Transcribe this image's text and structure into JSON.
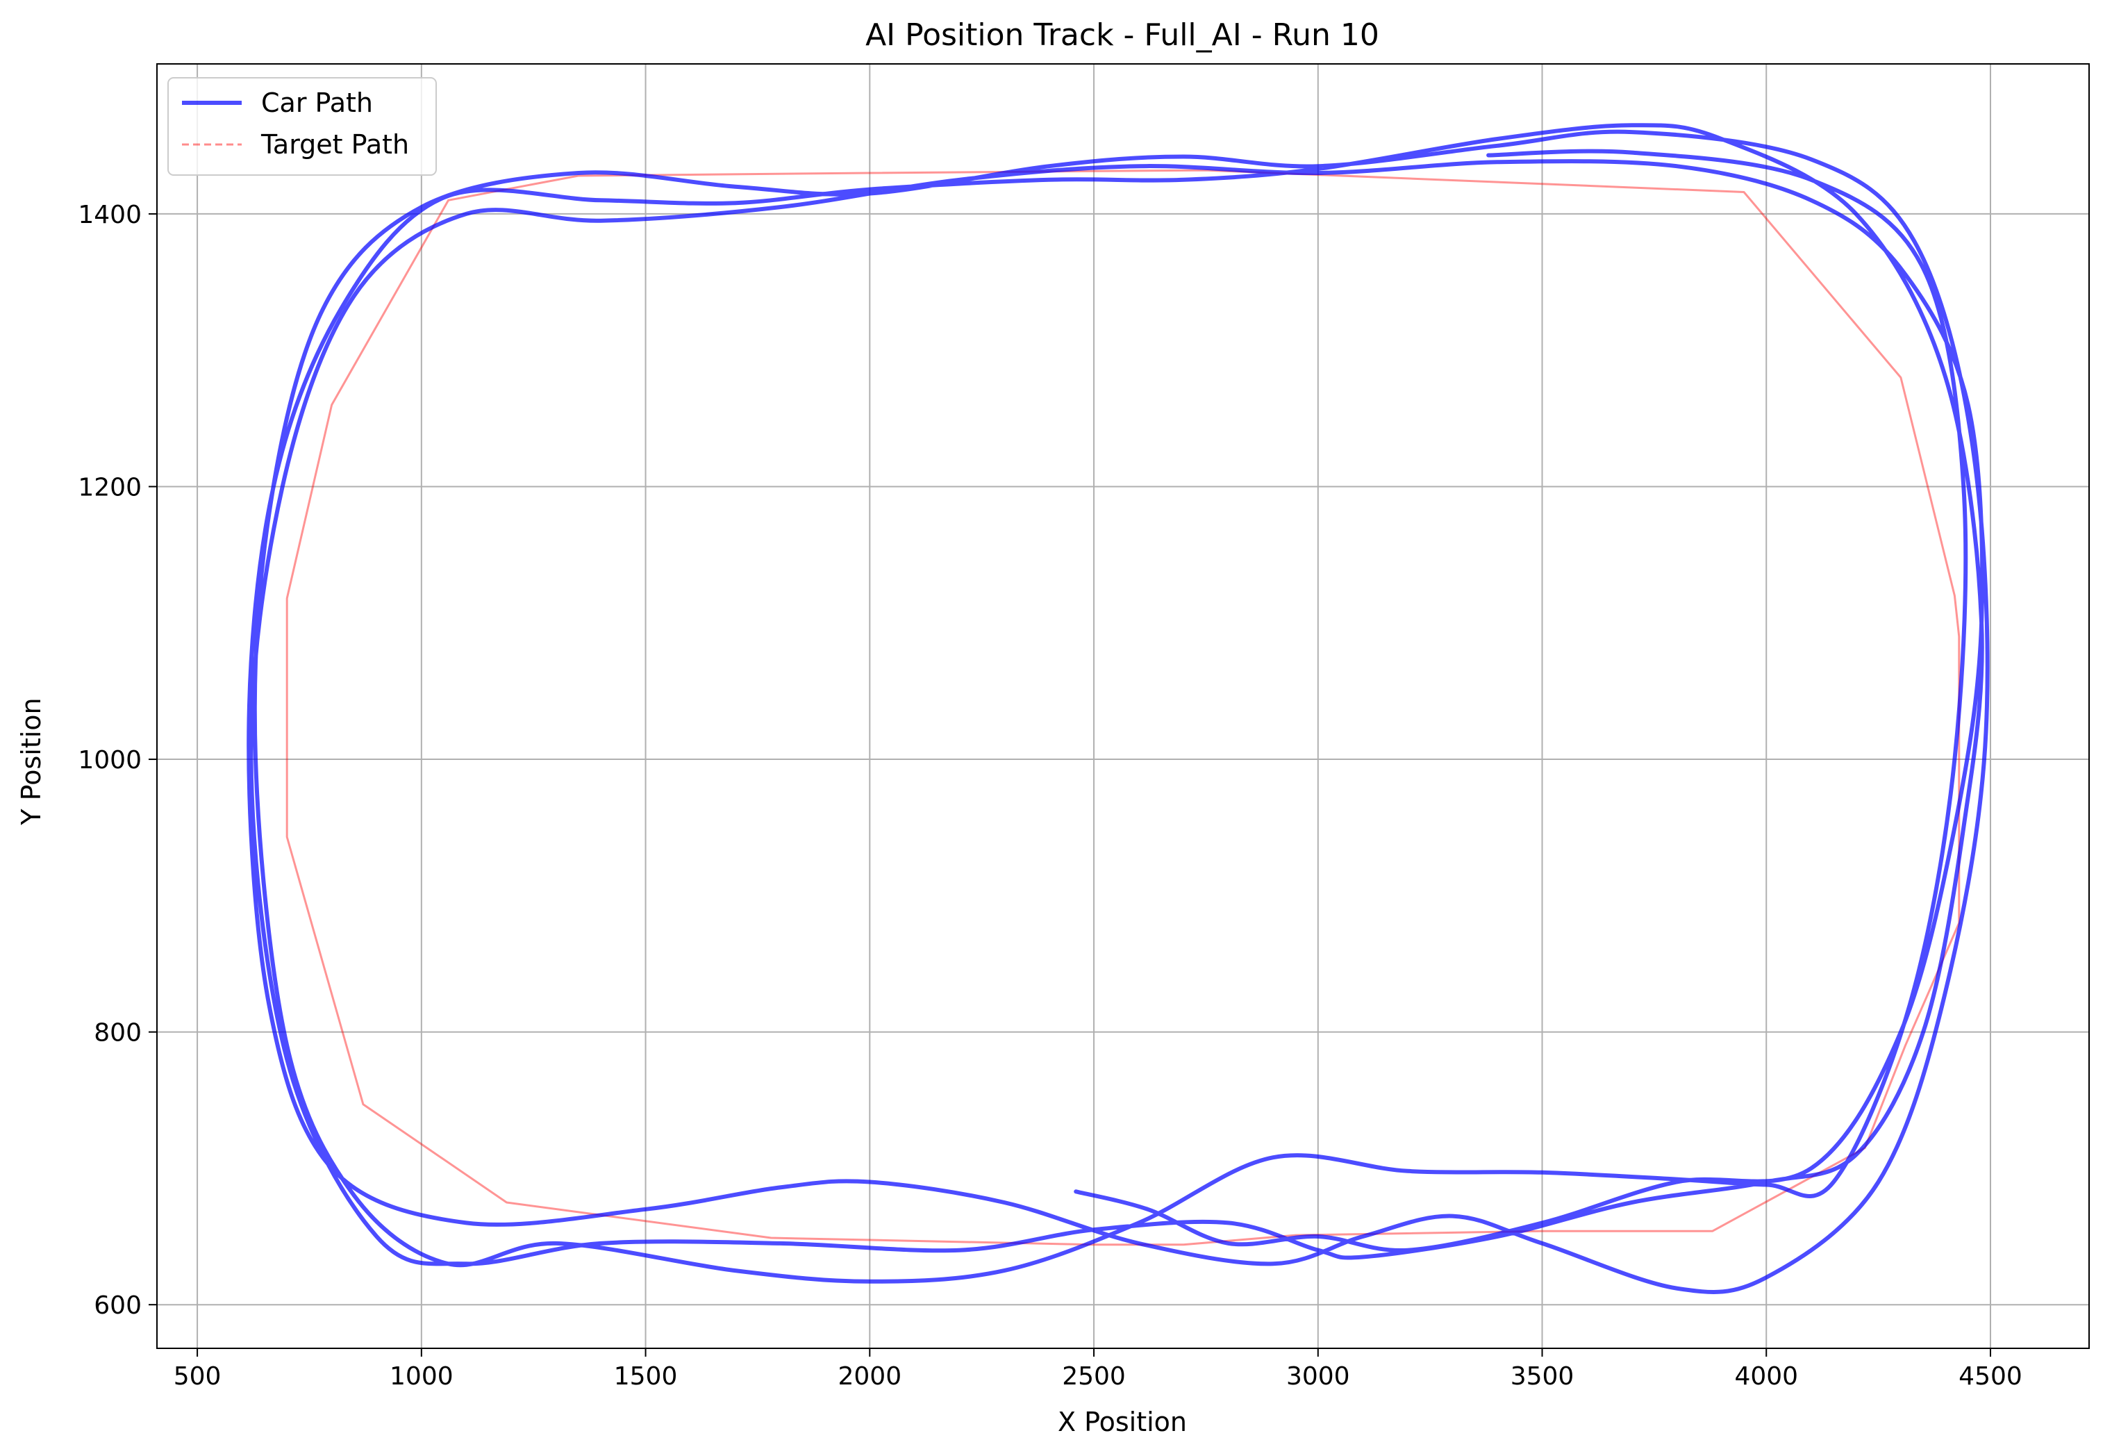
{
  "chart_data": {
    "type": "line",
    "title": "AI Position Track - Full_AI - Run 10",
    "xlabel": "X Position",
    "ylabel": "Y Position",
    "xlim": [
      410,
      4720
    ],
    "ylim": [
      568,
      1510
    ],
    "xticks": [
      500,
      1000,
      1500,
      2000,
      2500,
      3000,
      3500,
      4000,
      4500
    ],
    "yticks": [
      600,
      800,
      1000,
      1200,
      1400
    ],
    "grid": true,
    "legend": {
      "placement": "top-left",
      "entries": [
        "Car Path",
        "Target Path"
      ]
    },
    "colors": {
      "car": "#0000ff",
      "target": "#ff0000",
      "grid": "#b0b0b0"
    },
    "series": [
      {
        "name": "Target Path",
        "style": "thin",
        "points": [
          [
            1060,
            1410
          ],
          [
            1350,
            1428
          ],
          [
            2000,
            1430
          ],
          [
            2750,
            1432
          ],
          [
            3950,
            1416
          ],
          [
            4300,
            1280
          ],
          [
            4420,
            1120
          ],
          [
            4430,
            1090
          ],
          [
            4430,
            880
          ],
          [
            4310,
            790
          ],
          [
            4220,
            715
          ],
          [
            3880,
            654
          ],
          [
            3500,
            654
          ],
          [
            2950,
            651
          ],
          [
            2700,
            644
          ],
          [
            2500,
            644
          ],
          [
            1780,
            649
          ],
          [
            1190,
            675
          ],
          [
            870,
            747
          ],
          [
            700,
            943
          ],
          [
            700,
            1118
          ],
          [
            800,
            1260
          ],
          [
            1060,
            1410
          ]
        ]
      },
      {
        "name": "Car Path",
        "style": "thick",
        "points": [
          [
            2460,
            683
          ],
          [
            2620,
            670
          ],
          [
            2800,
            645
          ],
          [
            3000,
            650
          ],
          [
            3200,
            640
          ],
          [
            3500,
            660
          ],
          [
            3800,
            690
          ],
          [
            4100,
            700
          ],
          [
            4300,
            800
          ],
          [
            4420,
            950
          ],
          [
            4480,
            1100
          ],
          [
            4450,
            1260
          ],
          [
            4300,
            1360
          ],
          [
            4100,
            1410
          ],
          [
            3800,
            1435
          ],
          [
            3400,
            1438
          ],
          [
            3000,
            1430
          ],
          [
            2600,
            1435
          ],
          [
            2200,
            1425
          ],
          [
            1800,
            1405
          ],
          [
            1400,
            1395
          ],
          [
            1100,
            1400
          ],
          [
            850,
            1340
          ],
          [
            690,
            1200
          ],
          [
            620,
            1000
          ],
          [
            700,
            780
          ],
          [
            900,
            650
          ],
          [
            1100,
            630
          ],
          [
            1400,
            645
          ],
          [
            1800,
            645
          ],
          [
            2200,
            640
          ],
          [
            2500,
            655
          ],
          [
            2800,
            660
          ],
          [
            3000,
            640
          ],
          [
            3100,
            635
          ],
          [
            3400,
            650
          ],
          [
            3700,
            675
          ],
          [
            4000,
            690
          ],
          [
            4200,
            710
          ],
          [
            4350,
            800
          ],
          [
            4440,
            950
          ],
          [
            4480,
            1100
          ],
          [
            4400,
            1280
          ],
          [
            4200,
            1400
          ],
          [
            3900,
            1455
          ],
          [
            3700,
            1465
          ],
          [
            3400,
            1455
          ],
          [
            3000,
            1433
          ],
          [
            2700,
            1425
          ],
          [
            2400,
            1425
          ],
          [
            2000,
            1418
          ],
          [
            1700,
            1408
          ],
          [
            1400,
            1410
          ],
          [
            1050,
            1412
          ],
          [
            820,
            1330
          ],
          [
            670,
            1200
          ],
          [
            615,
            1020
          ],
          [
            660,
            820
          ],
          [
            800,
            700
          ],
          [
            1100,
            660
          ],
          [
            1500,
            670
          ],
          [
            1800,
            686
          ],
          [
            2000,
            690
          ],
          [
            2300,
            675
          ],
          [
            2600,
            645
          ],
          [
            2900,
            630
          ],
          [
            3100,
            650
          ],
          [
            3300,
            665
          ],
          [
            3500,
            645
          ],
          [
            3800,
            612
          ],
          [
            4000,
            620
          ],
          [
            4250,
            690
          ],
          [
            4400,
            830
          ],
          [
            4490,
            1020
          ],
          [
            4460,
            1230
          ],
          [
            4330,
            1380
          ],
          [
            4100,
            1440
          ],
          [
            3700,
            1460
          ],
          [
            3400,
            1450
          ],
          [
            3000,
            1435
          ],
          [
            2700,
            1442
          ],
          [
            2400,
            1435
          ],
          [
            2000,
            1415
          ],
          [
            1700,
            1420
          ],
          [
            1350,
            1430
          ],
          [
            1000,
            1405
          ],
          [
            780,
            1330
          ],
          [
            660,
            1180
          ],
          [
            630,
            1000
          ],
          [
            700,
            790
          ],
          [
            850,
            680
          ],
          [
            1060,
            630
          ],
          [
            1300,
            645
          ],
          [
            1700,
            625
          ],
          [
            2000,
            617
          ],
          [
            2300,
            625
          ],
          [
            2600,
            660
          ],
          [
            2900,
            708
          ],
          [
            3200,
            698
          ],
          [
            3500,
            697
          ],
          [
            3800,
            692
          ],
          [
            4000,
            688
          ],
          [
            4150,
            690
          ],
          [
            4320,
            820
          ],
          [
            4420,
            1000
          ],
          [
            4440,
            1200
          ],
          [
            4350,
            1360
          ],
          [
            4100,
            1425
          ],
          [
            3700,
            1445
          ],
          [
            3380,
            1443
          ]
        ]
      }
    ]
  }
}
